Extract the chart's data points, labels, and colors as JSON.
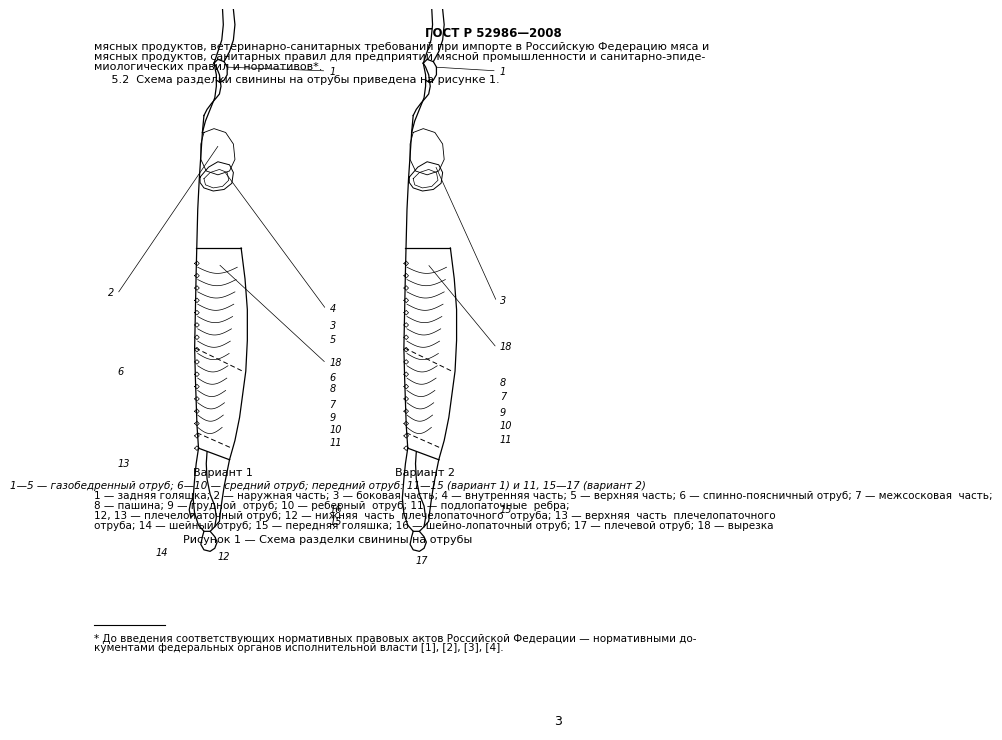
{
  "page_header": "ГОСТ Р 52986—2008",
  "page_number": "3",
  "body_text_line1": "мясных продуктов, ветеринарно-санитарных требований при импорте в Российскую Федерацию мяса и",
  "body_text_line2": "мясных продуктов, санитарных правил для предприятий мясной промышленности и санитарно-эпиде-",
  "body_text_line3": "миологических правил и нормативов*.",
  "body_text_line4": "     5.2  Схема разделки свинины на отрубы приведена на рисунке 1.",
  "variant1_label": "Вариант 1",
  "variant2_label": "Вариант 2",
  "caption_line1": "1—5 — газобедренный отруб; 6—10 — средний отруб; передний отруб: 11—15 (вариант 1) и 11, 15—17 (вариант 2)",
  "caption_line2a": "1 — задняя голяшка; 2 — наружная часть; 3 — боковая часть; 4 — внутренняя часть; 5 — верхняя часть; 6 — спинно-поясничный отруб; 7 — межсосковая  часть;",
  "caption_line2b": "8 — пашина; 9 — грудной  отруб; 10 — реберный  отруб; 11 — подлопаточные  ребра;",
  "caption_line3": "12, 13 — плечелопаточный отруб; 12 — нижняя  часть  плечелопаточного  отруба; 13 — верхняя  часть  плечелопаточного",
  "caption_line4": "отруба; 14 — шейный отруб; 15 — передняя голяшка; 16 — шейно-лопаточный отруб; 17 — плечевой отруб; 18 — вырезка",
  "figure_caption": "Рисунок 1 — Схема разделки свинины на отрубы",
  "footnote_line": "* До введения соответствующих нормативных правовых актов Российской Федерации — нормативными до-",
  "footnote_line2": "кументами федеральных органов исполнительной власти [1], [2], [3], [4].",
  "bg_color": "#ffffff",
  "text_color": "#000000"
}
